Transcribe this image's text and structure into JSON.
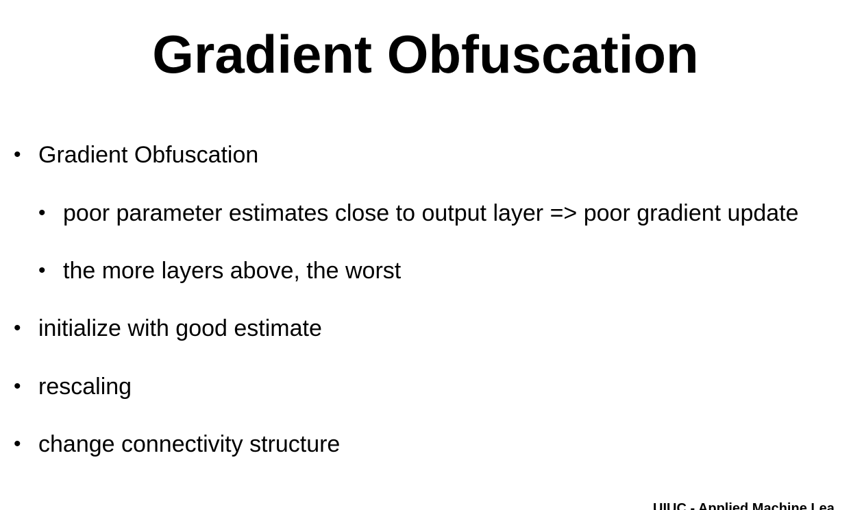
{
  "slide": {
    "title": "Gradient Obfuscation",
    "bullets": [
      {
        "text": "Gradient Obfuscation",
        "level": 1
      },
      {
        "text": "poor parameter estimates close to output layer => poor gradient update",
        "level": 2
      },
      {
        "text": "the more layers above, the worst",
        "level": 2
      },
      {
        "text": "initialize with good estimate",
        "level": 1
      },
      {
        "text": "rescaling",
        "level": 1
      },
      {
        "text": "change connectivity structure",
        "level": 1
      }
    ],
    "bullet_glyph": "•",
    "footer": "UIUC - Applied Machine Lea"
  }
}
